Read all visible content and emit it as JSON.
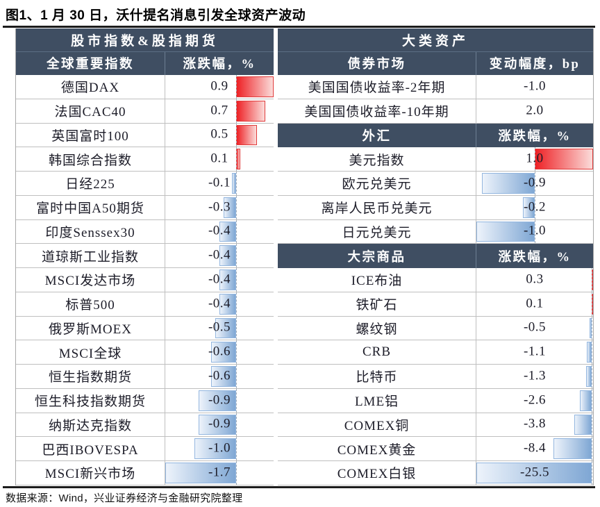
{
  "title": "图1、1 月 30 日，沃什提名消息引发全球资产波动",
  "source_note": "数据来源：Wind，兴业证券经济与金融研究院整理",
  "colors": {
    "header_bg": "#3f4e62",
    "header_text": "#ffffff",
    "text_color": "#1c1c28",
    "grid_line": "#bfbfbf",
    "positive_bar": "#ee2125",
    "positive_bar_light": "#fbdcda",
    "positive_border": "#e03a3a",
    "negative_bar": "#7fa7d4",
    "negative_bar_light": "#edf3fb",
    "negative_border": "#93b6df"
  },
  "left_table": {
    "group_header": "股市指数&股指期货",
    "name_header": "全球重要指数",
    "value_header": "涨跌幅，%",
    "axis": {
      "min": -1.7,
      "max": 0.9
    },
    "rows": [
      {
        "name": "德国DAX",
        "value": 0.9
      },
      {
        "name": "法国CAC40",
        "value": 0.7
      },
      {
        "name": "英国富时100",
        "value": 0.5
      },
      {
        "name": "韩国综合指数",
        "value": 0.1
      },
      {
        "name": "日经225",
        "value": -0.1
      },
      {
        "name": "富时中国A50期货",
        "value": -0.3
      },
      {
        "name": "印度Senssex30",
        "value": -0.4
      },
      {
        "name": "道琼斯工业指数",
        "value": -0.4
      },
      {
        "name": "MSCI发达市场",
        "value": -0.4
      },
      {
        "name": "标普500",
        "value": -0.4
      },
      {
        "name": "俄罗斯MOEX",
        "value": -0.5
      },
      {
        "name": "MSCI全球",
        "value": -0.6
      },
      {
        "name": "恒生指数期货",
        "value": -0.6
      },
      {
        "name": "恒生科技指数期货",
        "value": -0.9
      },
      {
        "name": "纳斯达克指数",
        "value": -0.9
      },
      {
        "name": "巴西IBOVESPA",
        "value": -1.0
      },
      {
        "name": "MSCI新兴市场",
        "value": -1.7
      }
    ]
  },
  "right_table": {
    "group_header": "大类资产",
    "sections": [
      {
        "name_header": "债券市场",
        "value_header": "变动幅度，bp",
        "show_bars": false,
        "rows": [
          {
            "name": "美国国债收益率-2年期",
            "value": -1.0
          },
          {
            "name": "美国国债收益率-10年期",
            "value": 2.0
          }
        ]
      },
      {
        "name_header": "外汇",
        "value_header": "涨跌幅，%",
        "show_bars": true,
        "axis": {
          "min": -1.0,
          "max": 1.0
        },
        "rows": [
          {
            "name": "美元指数",
            "value": 1.0
          },
          {
            "name": "欧元兑美元",
            "value": -0.9
          },
          {
            "name": "离岸人民币兑美元",
            "value": -0.2
          },
          {
            "name": "日元兑美元",
            "value": -1.0
          }
        ]
      },
      {
        "name_header": "大宗商品",
        "value_header": "涨跌幅，%",
        "show_bars": true,
        "axis": {
          "min": -25.5,
          "max": 0.3
        },
        "rows": [
          {
            "name": "ICE布油",
            "value": 0.3
          },
          {
            "name": "铁矿石",
            "value": 0.1
          },
          {
            "name": "螺纹钢",
            "value": -0.5
          },
          {
            "name": "CRB",
            "value": -1.1
          },
          {
            "name": "比特币",
            "value": -1.3
          },
          {
            "name": "LME铝",
            "value": -2.6
          },
          {
            "name": "COMEX铜",
            "value": -3.8
          },
          {
            "name": "COMEX黄金",
            "value": -8.4
          },
          {
            "name": "COMEX白银",
            "value": -25.5
          }
        ]
      }
    ]
  },
  "chart_data": [
    {
      "type": "table",
      "title": "股市指数&股指期货",
      "columns": [
        "全球重要指数",
        "涨跌幅，%"
      ],
      "bar_axis_range": [
        -1.7,
        0.9
      ],
      "rows": [
        [
          "德国DAX",
          0.9
        ],
        [
          "法国CAC40",
          0.7
        ],
        [
          "英国富时100",
          0.5
        ],
        [
          "韩国综合指数",
          0.1
        ],
        [
          "日经225",
          -0.1
        ],
        [
          "富时中国A50期货",
          -0.3
        ],
        [
          "印度Senssex30",
          -0.4
        ],
        [
          "道琼斯工业指数",
          -0.4
        ],
        [
          "MSCI发达市场",
          -0.4
        ],
        [
          "标普500",
          -0.4
        ],
        [
          "俄罗斯MOEX",
          -0.5
        ],
        [
          "MSCI全球",
          -0.6
        ],
        [
          "恒生指数期货",
          -0.6
        ],
        [
          "恒生科技指数期货",
          -0.9
        ],
        [
          "纳斯达克指数",
          -0.9
        ],
        [
          "巴西IBOVESPA",
          -1.0
        ],
        [
          "MSCI新兴市场",
          -1.7
        ]
      ]
    },
    {
      "type": "table",
      "title": "大类资产",
      "sections": [
        {
          "columns": [
            "债券市场",
            "变动幅度，bp"
          ],
          "rows": [
            [
              "美国国债收益率-2年期",
              -1.0
            ],
            [
              "美国国债收益率-10年期",
              2.0
            ]
          ]
        },
        {
          "columns": [
            "外汇",
            "涨跌幅，%"
          ],
          "bar_axis_range": [
            -1.0,
            1.0
          ],
          "rows": [
            [
              "美元指数",
              1.0
            ],
            [
              "欧元兑美元",
              -0.9
            ],
            [
              "离岸人民币兑美元",
              -0.2
            ],
            [
              "日元兑美元",
              -1.0
            ]
          ]
        },
        {
          "columns": [
            "大宗商品",
            "涨跌幅，%"
          ],
          "bar_axis_range": [
            -25.5,
            0.3
          ],
          "rows": [
            [
              "ICE布油",
              0.3
            ],
            [
              "铁矿石",
              0.1
            ],
            [
              "螺纹钢",
              -0.5
            ],
            [
              "CRB",
              -1.1
            ],
            [
              "比特币",
              -1.3
            ],
            [
              "LME铝",
              -2.6
            ],
            [
              "COMEX铜",
              -3.8
            ],
            [
              "COMEX黄金",
              -8.4
            ],
            [
              "COMEX白银",
              -25.5
            ]
          ]
        }
      ]
    }
  ]
}
